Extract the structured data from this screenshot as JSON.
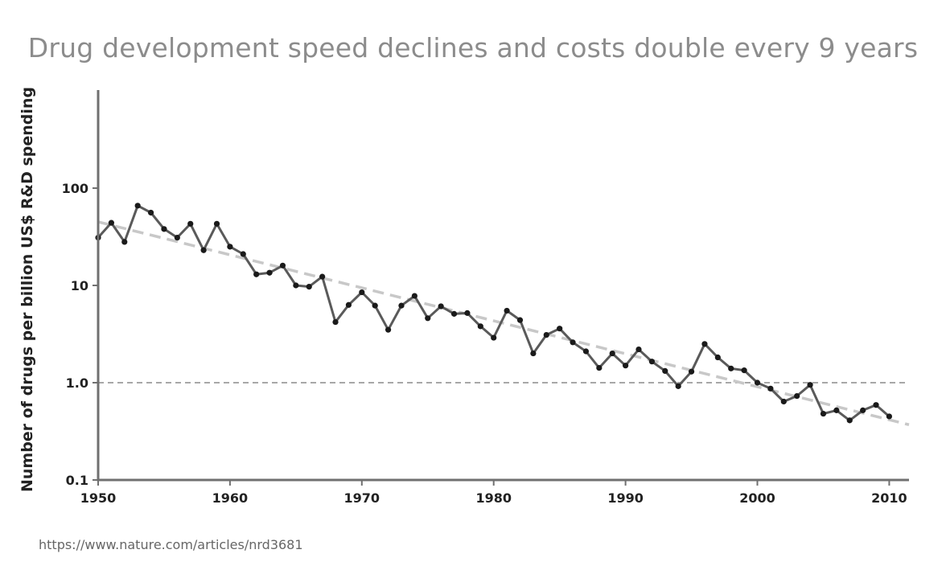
{
  "chart_data": {
    "type": "line",
    "title": "Drug development speed declines and costs double every 9 years",
    "xlabel": "",
    "ylabel": "Number of drugs per billion US$ R&D spending",
    "yscale": "log",
    "xlim": [
      1950,
      2011.5
    ],
    "ylim": [
      0.1,
      1000
    ],
    "x_ticks": [
      "1950",
      "1960",
      "1970",
      "1980",
      "1990",
      "2000",
      "2010"
    ],
    "y_ticks": [
      "0.1",
      "1.0",
      "10",
      "100"
    ],
    "reference_line": {
      "y": 1.0,
      "style": "dashed"
    },
    "trend_line": {
      "x": [
        1950,
        2011.5
      ],
      "y": [
        45,
        0.37
      ],
      "style": "dashed"
    },
    "series": [
      {
        "name": "Drugs per billion US$ R&D",
        "x": [
          1950,
          1951,
          1952,
          1953,
          1954,
          1955,
          1956,
          1957,
          1958,
          1959,
          1960,
          1961,
          1962,
          1963,
          1964,
          1965,
          1966,
          1967,
          1968,
          1969,
          1970,
          1971,
          1972,
          1973,
          1974,
          1975,
          1976,
          1977,
          1978,
          1979,
          1980,
          1981,
          1982,
          1983,
          1984,
          1985,
          1986,
          1987,
          1988,
          1989,
          1990,
          1991,
          1992,
          1993,
          1994,
          1995,
          1996,
          1997,
          1998,
          1999,
          2000,
          2001,
          2002,
          2003,
          2004,
          2005,
          2006,
          2007,
          2008,
          2009,
          2010
        ],
        "y": [
          31,
          44,
          28,
          66,
          56,
          38,
          31,
          43,
          23,
          43,
          25,
          21,
          13,
          13.5,
          16,
          10,
          9.7,
          12.3,
          4.2,
          6.3,
          8.5,
          6.2,
          3.5,
          6.2,
          7.8,
          4.6,
          6.1,
          5.1,
          5.2,
          3.8,
          2.9,
          5.5,
          4.4,
          2.0,
          3.1,
          3.6,
          2.6,
          2.1,
          1.42,
          2.0,
          1.5,
          2.2,
          1.65,
          1.32,
          0.92,
          1.3,
          2.5,
          1.82,
          1.4,
          1.34,
          1.0,
          0.87,
          0.64,
          0.73,
          0.95,
          0.48,
          0.52,
          0.41,
          0.52,
          0.59,
          0.45
        ]
      }
    ]
  },
  "source": "https://www.nature.com/articles/nrd3681"
}
